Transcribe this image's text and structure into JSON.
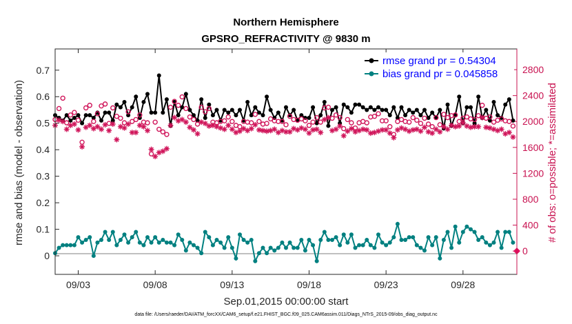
{
  "chart_data": {
    "type": "line",
    "title": "Northern Hemisphere",
    "subtitle": "GPSRO_REFRACTIVITY @ 9830 m",
    "xlabel": "Sep.01,2015 00:00:00 start",
    "ylabel": "rmse and bias (model - observation)",
    "ylabel_right": "# of obs: o=possible; *=assimilated",
    "footnote": "data file: /Users/raeder/DAI/ATM_forcXX/CAM6_setup/f.e21.FHIST_BGC.f09_025.CAM6assim.011/Diags_NTrS_2015-09/obs_diag_output.nc",
    "xlim": [
      1.5,
      31.5
    ],
    "ylim": [
      -0.07,
      0.78
    ],
    "ylim_right": [
      -360,
      3120
    ],
    "x_ticks": [
      3,
      8,
      13,
      18,
      23,
      28
    ],
    "x_tick_labels": [
      "09/03",
      "09/08",
      "09/13",
      "09/18",
      "09/23",
      "09/28"
    ],
    "y_ticks": [
      0,
      0.1,
      0.2,
      0.3,
      0.4,
      0.5,
      0.6,
      0.7
    ],
    "y_tick_labels": [
      "0",
      "0.1",
      "0.2",
      "0.3",
      "0.4",
      "0.5",
      "0.6",
      "0.7"
    ],
    "y_ticks_right": [
      0,
      400,
      800,
      1200,
      1600,
      2000,
      2400,
      2800
    ],
    "y_tick_labels_right": [
      "0",
      "400",
      "800",
      "1200",
      "1600",
      "2000",
      "2400",
      "2800"
    ],
    "legend": [
      "rmse grand pr = 0.54304",
      "bias grand pr = 0.045858"
    ],
    "legend_position": "top-right",
    "x": [
      1.5,
      1.75,
      2.0,
      2.25,
      2.5,
      2.75,
      3.0,
      3.25,
      3.5,
      3.75,
      4.0,
      4.25,
      4.5,
      4.75,
      5.0,
      5.25,
      5.5,
      5.75,
      6.0,
      6.25,
      6.5,
      6.75,
      7.0,
      7.25,
      7.5,
      7.75,
      8.0,
      8.25,
      8.5,
      8.75,
      9.0,
      9.25,
      9.5,
      9.75,
      10.0,
      10.25,
      10.5,
      10.75,
      11.0,
      11.25,
      11.5,
      11.75,
      12.0,
      12.25,
      12.5,
      12.75,
      13.0,
      13.25,
      13.5,
      13.75,
      14.0,
      14.25,
      14.5,
      14.75,
      15.0,
      15.25,
      15.5,
      15.75,
      16.0,
      16.25,
      16.5,
      16.75,
      17.0,
      17.25,
      17.5,
      17.75,
      18.0,
      18.25,
      18.5,
      18.75,
      19.0,
      19.25,
      19.5,
      19.75,
      20.0,
      20.25,
      20.5,
      20.75,
      21.0,
      21.25,
      21.5,
      21.75,
      22.0,
      22.25,
      22.5,
      22.75,
      23.0,
      23.25,
      23.5,
      23.75,
      24.0,
      24.25,
      24.5,
      24.75,
      25.0,
      25.25,
      25.5,
      25.75,
      26.0,
      26.25,
      26.5,
      26.75,
      27.0,
      27.25,
      27.5,
      27.75,
      28.0,
      28.25,
      28.5,
      28.75,
      29.0,
      29.25,
      29.5,
      29.75,
      30.0,
      30.25,
      30.5,
      30.75,
      31.0,
      31.25
    ],
    "series": [
      {
        "name": "rmse",
        "color": "#000000",
        "marker": "filled-circle",
        "values": [
          0.53,
          0.52,
          0.51,
          0.53,
          0.51,
          0.52,
          0.53,
          0.5,
          0.53,
          0.53,
          0.52,
          0.54,
          0.51,
          0.54,
          0.54,
          0.51,
          0.57,
          0.56,
          0.58,
          0.53,
          0.56,
          0.6,
          0.52,
          0.58,
          0.61,
          0.54,
          0.54,
          0.68,
          0.54,
          0.59,
          0.49,
          0.58,
          0.53,
          0.56,
          0.61,
          0.55,
          0.53,
          0.51,
          0.59,
          0.52,
          0.57,
          0.53,
          0.55,
          0.51,
          0.55,
          0.54,
          0.55,
          0.53,
          0.55,
          0.51,
          0.58,
          0.53,
          0.56,
          0.54,
          0.53,
          0.6,
          0.55,
          0.52,
          0.54,
          0.51,
          0.56,
          0.53,
          0.55,
          0.51,
          0.53,
          0.52,
          0.52,
          0.56,
          0.5,
          0.53,
          0.58,
          0.49,
          0.55,
          0.56,
          0.5,
          0.57,
          0.56,
          0.54,
          0.57,
          0.57,
          0.56,
          0.55,
          0.56,
          0.55,
          0.56,
          0.55,
          0.55,
          0.53,
          0.56,
          0.52,
          0.56,
          0.53,
          0.55,
          0.54,
          0.55,
          0.53,
          0.55,
          0.52,
          0.54,
          0.52,
          0.55,
          0.48,
          0.57,
          0.49,
          0.53,
          0.6,
          0.5,
          0.56,
          0.56,
          0.5,
          0.6,
          0.52,
          0.55,
          0.51,
          0.58,
          0.53,
          0.52,
          0.57,
          0.59,
          0.51
        ]
      },
      {
        "name": "bias",
        "color": "#008080",
        "marker": "filled-circle",
        "values": [
          0.01,
          0.03,
          0.04,
          0.04,
          0.04,
          0.04,
          0.07,
          0.05,
          0.06,
          0.07,
          0.0,
          0.05,
          0.06,
          0.09,
          0.06,
          0.09,
          0.04,
          0.06,
          0.08,
          0.05,
          0.07,
          0.09,
          0.05,
          0.04,
          0.07,
          0.05,
          0.07,
          0.05,
          0.06,
          0.05,
          0.05,
          0.04,
          0.08,
          0.06,
          0.02,
          0.05,
          0.04,
          0.03,
          0.01,
          0.09,
          0.07,
          0.04,
          0.06,
          0.05,
          0.03,
          0.07,
          0.03,
          -0.01,
          0.08,
          0.06,
          0.05,
          0.06,
          -0.02,
          0.01,
          0.03,
          0.01,
          0.03,
          0.02,
          0.03,
          0.05,
          0.03,
          0.05,
          0.03,
          0.03,
          0.06,
          0.02,
          0.06,
          0.04,
          -0.02,
          0.06,
          0.09,
          0.06,
          0.06,
          0.07,
          0.04,
          0.08,
          0.05,
          0.08,
          0.03,
          0.04,
          0.04,
          0.06,
          0.04,
          0.03,
          0.08,
          0.05,
          0.04,
          0.05,
          0.07,
          0.12,
          0.06,
          0.06,
          0.07,
          0.07,
          0.04,
          0.03,
          0.02,
          0.07,
          0.04,
          0.07,
          -0.01,
          0.06,
          0.09,
          0.03,
          0.11,
          0.05,
          0.09,
          0.11,
          0.1,
          0.09,
          0.06,
          0.07,
          0.05,
          0.04,
          0.05,
          0.09,
          0.03,
          0.09,
          0.09,
          0.05
        ]
      },
      {
        "name": "possible",
        "color": "#d0155a",
        "marker": "open-circle",
        "axis": "right",
        "values": [
          2030,
          2200,
          2360,
          1980,
          2100,
          2140,
          2020,
          1680,
          2210,
          2250,
          2000,
          2120,
          2240,
          2270,
          1970,
          2210,
          2080,
          2050,
          1980,
          2150,
          2000,
          2030,
          2100,
          1990,
          1980,
          1500,
          1990,
          1880,
          1840,
          1800,
          2220,
          2310,
          2250,
          2380,
          2200,
          2070,
          2030,
          1960,
          2220,
          2150,
          2200,
          1990,
          1980,
          2000,
          2010,
          2070,
          2000,
          1940,
          1920,
          2000,
          1990,
          1980,
          2110,
          2000,
          1960,
          1970,
          2040,
          2010,
          2000,
          2000,
          1950,
          2080,
          2030,
          2020,
          2040,
          2010,
          1940,
          1990,
          2060,
          1990,
          2210,
          2220,
          2050,
          2100,
          2060,
          1890,
          2030,
          1980,
          1900,
          1980,
          2000,
          1980,
          2070,
          2080,
          2120,
          2010,
          2010,
          1920,
          1800,
          2000,
          2030,
          2000,
          1990,
          2060,
          2020,
          1970,
          2050,
          1960,
          1920,
          2060,
          1950,
          2110,
          2060,
          2090,
          2100,
          2000,
          2050,
          2070,
          2040,
          2030,
          2090,
          2250,
          2050,
          2070,
          1990,
          2020,
          2040,
          2010,
          2000,
          1930
        ]
      },
      {
        "name": "assimilated",
        "color": "#d0155a",
        "marker": "asterisk",
        "axis": "right",
        "values": [
          1940,
          2020,
          2000,
          1880,
          1940,
          1960,
          1870,
          1610,
          1910,
          1940,
          1890,
          1920,
          1880,
          1950,
          1860,
          1960,
          1720,
          1920,
          1900,
          1960,
          1830,
          1830,
          1940,
          1920,
          1860,
          1570,
          1460,
          1520,
          1540,
          1580,
          1940,
          2060,
          2010,
          2030,
          1990,
          1910,
          1870,
          1810,
          1990,
          1970,
          1930,
          1940,
          1920,
          1900,
          1880,
          1940,
          1880,
          1830,
          1850,
          1890,
          1860,
          1890,
          1950,
          1870,
          1860,
          1850,
          1860,
          1880,
          1830,
          1860,
          1840,
          1840,
          1890,
          1870,
          1900,
          1880,
          1820,
          1870,
          1880,
          1830,
          2030,
          2060,
          1860,
          1880,
          1930,
          1780,
          1850,
          1890,
          1840,
          1860,
          1880,
          1870,
          1820,
          1830,
          1850,
          1870,
          1870,
          1820,
          1750,
          1870,
          1900,
          1880,
          1850,
          1870,
          1880,
          1850,
          1910,
          1840,
          1820,
          1880,
          1840,
          1920,
          1880,
          1940,
          1920,
          1930,
          1980,
          1930,
          1910,
          1920,
          1920,
          2060,
          1910,
          1900,
          1880,
          1860,
          1880,
          1810,
          1830,
          1760
        ]
      }
    ]
  }
}
